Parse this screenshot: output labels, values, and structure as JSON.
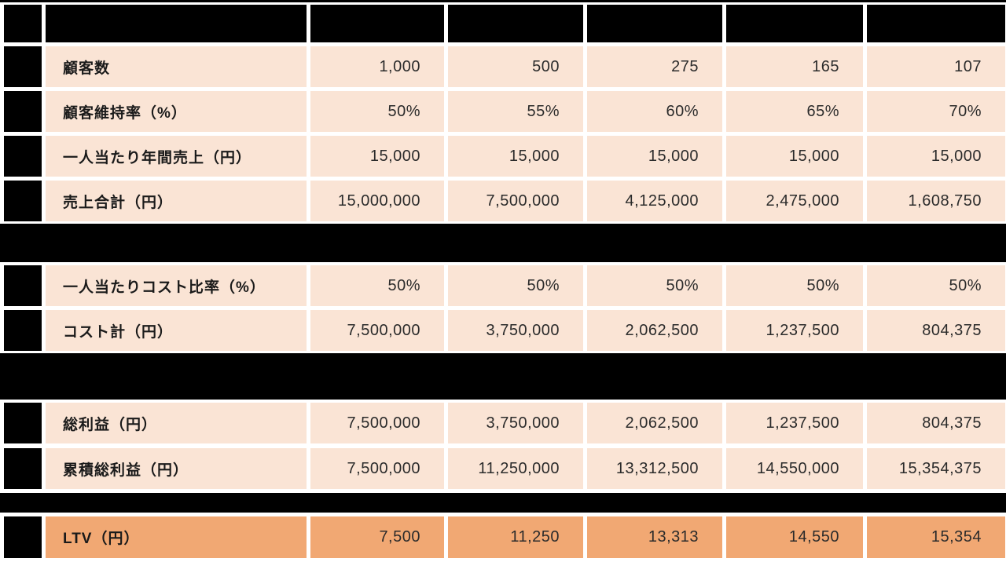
{
  "table_type": "ltv-calculation-table",
  "colors": {
    "cell_bg": "#FAE4D5",
    "ltv_row_bg": "#F1A873",
    "redacted": "#000000",
    "text": "#262626",
    "page_bg": "#FFFFFF"
  },
  "header": {
    "note": "all header cells redacted (solid black)"
  },
  "rows": [
    {
      "label": "顧客数",
      "values": [
        "1,000",
        "500",
        "275",
        "165",
        "107"
      ]
    },
    {
      "label": "顧客維持率（%）",
      "values": [
        "50%",
        "55%",
        "60%",
        "65%",
        "70%"
      ]
    },
    {
      "label": "一人当たり年間売上（円）",
      "values": [
        "15,000",
        "15,000",
        "15,000",
        "15,000",
        "15,000"
      ]
    },
    {
      "label": "売上合計（円）",
      "values": [
        "15,000,000",
        "7,500,000",
        "4,125,000",
        "2,475,000",
        "1,608,750"
      ]
    },
    {
      "label": "一人当たりコスト比率（%）",
      "values": [
        "50%",
        "50%",
        "50%",
        "50%",
        "50%"
      ]
    },
    {
      "label": "コスト計（円）",
      "values": [
        "7,500,000",
        "3,750,000",
        "2,062,500",
        "1,237,500",
        "804,375"
      ]
    },
    {
      "label": "総利益（円）",
      "values": [
        "7,500,000",
        "3,750,000",
        "2,062,500",
        "1,237,500",
        "804,375"
      ]
    },
    {
      "label": "累積総利益（円）",
      "values": [
        "7,500,000",
        "11,250,000",
        "13,312,500",
        "14,550,000",
        "15,354,375"
      ]
    },
    {
      "label": "LTV（円）",
      "values": [
        "7,500",
        "11,250",
        "13,313",
        "14,550",
        "15,354"
      ]
    }
  ]
}
